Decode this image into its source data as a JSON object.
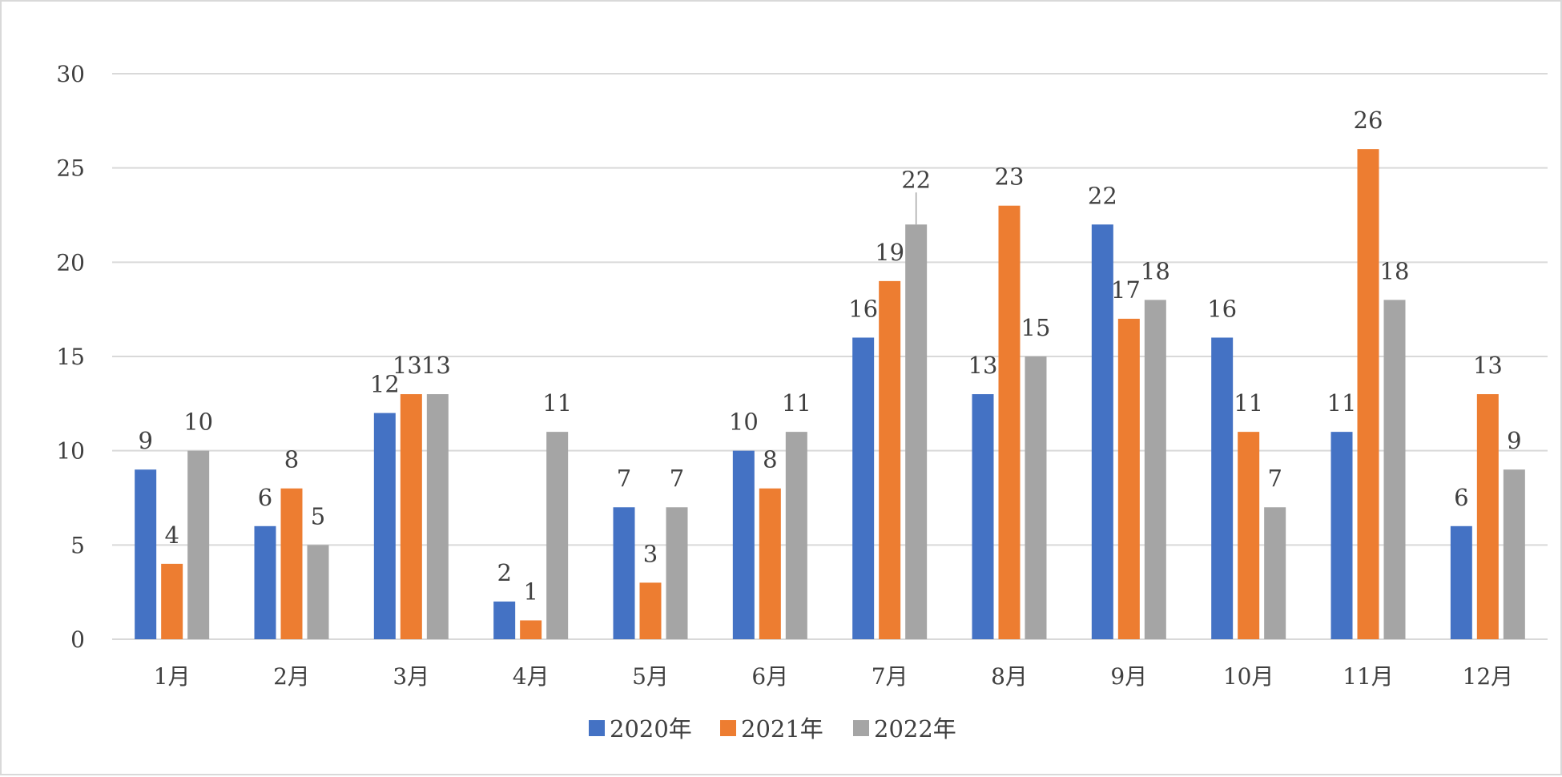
{
  "chart_data": {
    "type": "bar",
    "title": "",
    "xlabel": "",
    "ylabel": "",
    "ylim": [
      0,
      30
    ],
    "yticks": [
      0,
      5,
      10,
      15,
      20,
      25,
      30
    ],
    "grid": true,
    "legend_position": "bottom",
    "categories": [
      "1月",
      "2月",
      "3月",
      "4月",
      "5月",
      "6月",
      "7月",
      "8月",
      "9月",
      "10月",
      "11月",
      "12月"
    ],
    "series": [
      {
        "name": "2020年",
        "color": "#4472c4",
        "values": [
          9,
          6,
          12,
          2,
          7,
          10,
          16,
          13,
          22,
          16,
          11,
          6
        ]
      },
      {
        "name": "2021年",
        "color": "#ed7d31",
        "values": [
          4,
          8,
          13,
          1,
          3,
          8,
          19,
          23,
          17,
          11,
          26,
          13
        ]
      },
      {
        "name": "2022年",
        "color": "#a5a5a5",
        "values": [
          10,
          5,
          13,
          11,
          7,
          11,
          22,
          15,
          18,
          7,
          18,
          9
        ]
      }
    ]
  }
}
